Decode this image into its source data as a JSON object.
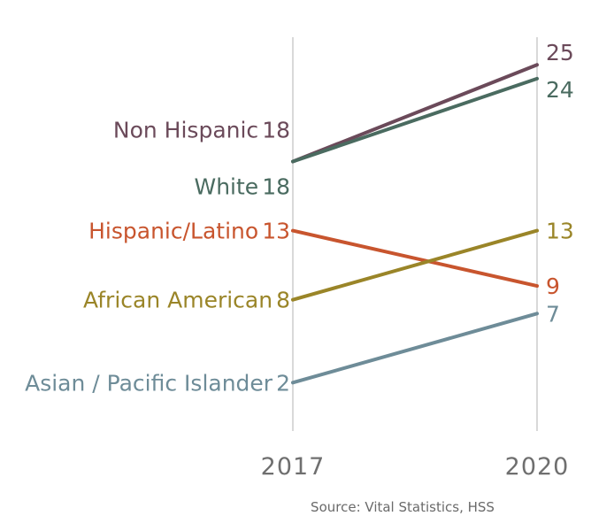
{
  "chart_data": {
    "type": "line",
    "subtype": "slope",
    "x": [
      "2017",
      "2020"
    ],
    "series": [
      {
        "name": "Non Hispanic",
        "values": [
          18,
          25
        ],
        "color": "#6b4a5a"
      },
      {
        "name": "White",
        "values": [
          18,
          24
        ],
        "color": "#4a6b60"
      },
      {
        "name": "Hispanic/Latino",
        "values": [
          13,
          9
        ],
        "color": "#c8552e"
      },
      {
        "name": "African American",
        "values": [
          8,
          13
        ],
        "color": "#9a8528"
      },
      {
        "name": "Asian / Pacific Islander",
        "values": [
          2,
          7
        ],
        "color": "#6e8c98"
      }
    ],
    "ylim": [
      -1.5,
      27
    ],
    "grid": false,
    "source": "Source: Vital Statistics, HSS"
  }
}
